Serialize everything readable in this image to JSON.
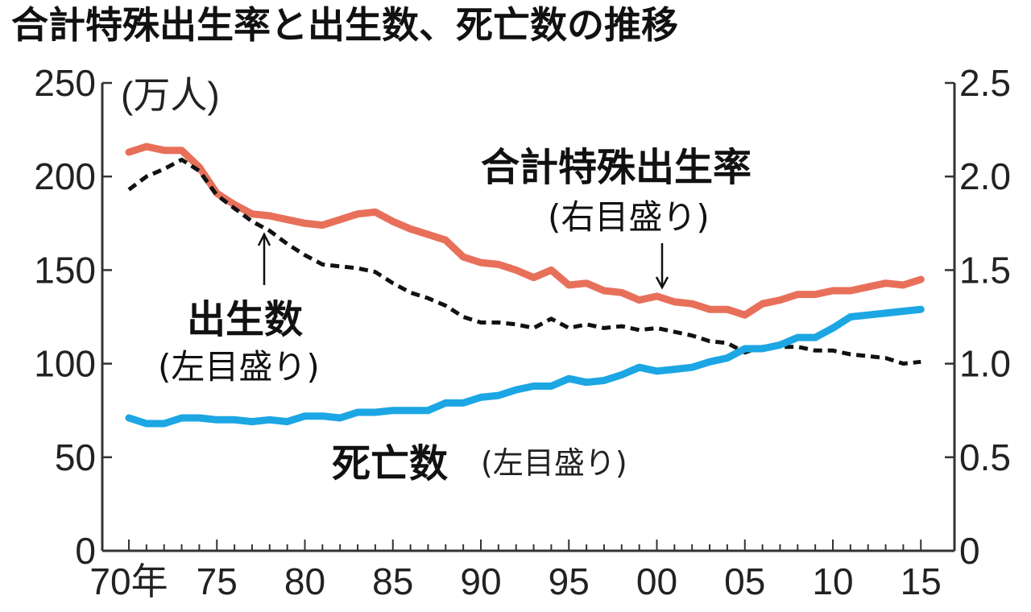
{
  "chart_data": {
    "type": "line",
    "title": "合計特殊出生率と出生数、死亡数の推移",
    "x": [
      1970,
      1971,
      1972,
      1973,
      1974,
      1975,
      1976,
      1977,
      1978,
      1979,
      1980,
      1981,
      1982,
      1983,
      1984,
      1985,
      1986,
      1987,
      1988,
      1989,
      1990,
      1991,
      1992,
      1993,
      1994,
      1995,
      1996,
      1997,
      1998,
      1999,
      2000,
      2001,
      2002,
      2003,
      2004,
      2005,
      2006,
      2007,
      2008,
      2009,
      2010,
      2011,
      2012,
      2013,
      2014,
      2015
    ],
    "x_ticks": [
      1970,
      1975,
      1980,
      1985,
      1990,
      1995,
      2000,
      2005,
      2010,
      2015
    ],
    "x_tick_labels": [
      "70年",
      "75",
      "80",
      "85",
      "90",
      "95",
      "00",
      "05",
      "10",
      "15"
    ],
    "y_left": {
      "unit": "(万人)",
      "ylim": [
        0,
        250
      ],
      "ticks": [
        0,
        50,
        100,
        150,
        200,
        250
      ],
      "tick_labels": [
        "0",
        "50",
        "100",
        "150",
        "200",
        "250"
      ]
    },
    "y_right": {
      "ylim": [
        0,
        2.5
      ],
      "ticks": [
        0,
        0.5,
        1.0,
        1.5,
        2.0,
        2.5
      ],
      "tick_labels": [
        "0",
        "0.5",
        "1.0",
        "1.5",
        "2.0",
        "2.5"
      ]
    },
    "series": [
      {
        "name": "合計特殊出生率",
        "axis": "right",
        "color": "#e8705a",
        "style": "solid",
        "values": [
          2.13,
          2.16,
          2.14,
          2.14,
          2.05,
          1.91,
          1.85,
          1.8,
          1.79,
          1.77,
          1.75,
          1.74,
          1.77,
          1.8,
          1.81,
          1.76,
          1.72,
          1.69,
          1.66,
          1.57,
          1.54,
          1.53,
          1.5,
          1.46,
          1.5,
          1.42,
          1.43,
          1.39,
          1.38,
          1.34,
          1.36,
          1.33,
          1.32,
          1.29,
          1.29,
          1.26,
          1.32,
          1.34,
          1.37,
          1.37,
          1.39,
          1.39,
          1.41,
          1.43,
          1.42,
          1.45
        ]
      },
      {
        "name": "出生数",
        "axis": "left",
        "color": "#111111",
        "style": "dashed",
        "values": [
          193,
          200,
          204,
          209,
          203,
          190,
          183,
          176,
          171,
          164,
          158,
          153,
          152,
          151,
          149,
          143,
          138,
          135,
          131,
          125,
          122,
          122,
          121,
          119,
          124,
          119,
          121,
          119,
          120,
          118,
          119,
          117,
          115,
          112,
          111,
          106,
          109,
          109,
          109,
          107,
          107,
          105,
          104,
          103,
          100,
          101
        ]
      },
      {
        "name": "死亡数",
        "axis": "left",
        "color": "#1ca6e4",
        "style": "solid",
        "values": [
          71,
          68,
          68,
          71,
          71,
          70,
          70,
          69,
          70,
          69,
          72,
          72,
          71,
          74,
          74,
          75,
          75,
          75,
          79,
          79,
          82,
          83,
          86,
          88,
          88,
          92,
          90,
          91,
          94,
          98,
          96,
          97,
          98,
          101,
          103,
          108,
          108,
          110,
          114,
          114,
          119,
          125,
          126,
          127,
          128,
          129
        ]
      }
    ],
    "annotations": {
      "rate_label": "合計特殊出生率",
      "rate_scale": "(右目盛り)",
      "births_label": "出生数",
      "births_scale": "(左目盛り)",
      "deaths_label": "死亡数",
      "deaths_scale": "(左目盛り)"
    },
    "grid": false,
    "legend": "none"
  }
}
